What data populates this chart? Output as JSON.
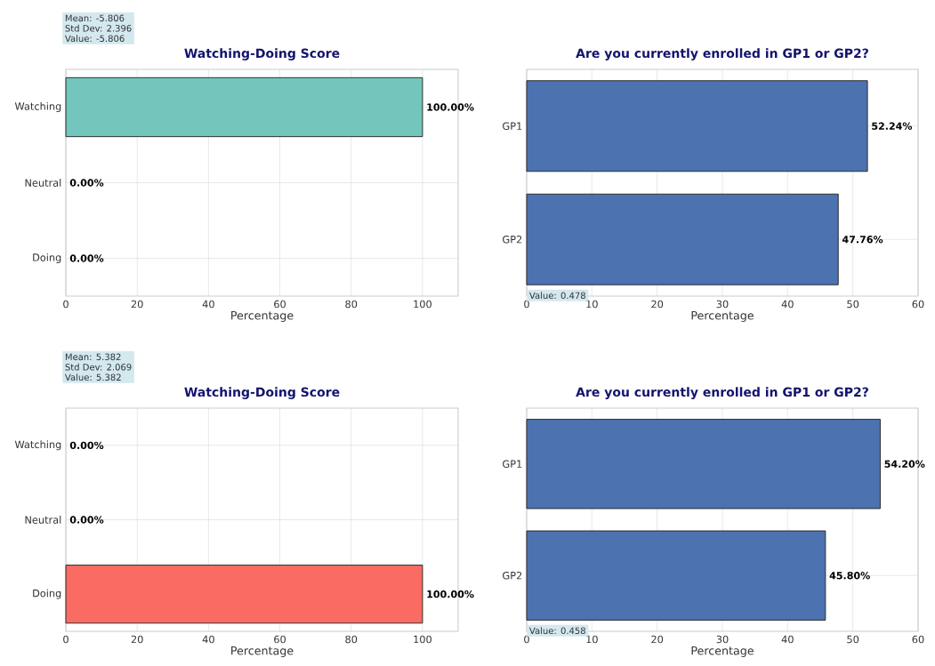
{
  "chart_data": [
    {
      "type": "bar",
      "orientation": "horizontal",
      "title": "Watching-Doing Score",
      "xlabel": "Percentage",
      "categories": [
        "Watching",
        "Neutral",
        "Doing"
      ],
      "values": [
        100,
        0,
        0
      ],
      "value_labels": [
        "100.00%",
        "0.00%",
        "0.00%"
      ],
      "color": "#72c6bc",
      "xlim": [
        0,
        110
      ],
      "xticks": [
        0,
        20,
        40,
        60,
        80,
        100
      ],
      "grid": true,
      "annotations": [
        "Mean: -5.806",
        "Std Dev: 2.396",
        "Value: -5.806"
      ]
    },
    {
      "type": "bar",
      "orientation": "horizontal",
      "title": "Are you currently enrolled in GP1 or GP2?",
      "xlabel": "Percentage",
      "categories": [
        "GP1",
        "GP2"
      ],
      "values": [
        52.24,
        47.76
      ],
      "value_labels": [
        "52.24%",
        "47.76%"
      ],
      "color": "#4c72b0",
      "xlim": [
        0,
        60
      ],
      "xticks": [
        0,
        10,
        20,
        30,
        40,
        50,
        60
      ],
      "grid": true,
      "annotations": [
        "Value: 0.478"
      ]
    },
    {
      "type": "bar",
      "orientation": "horizontal",
      "title": "Watching-Doing Score",
      "xlabel": "Percentage",
      "categories": [
        "Watching",
        "Neutral",
        "Doing"
      ],
      "values": [
        0,
        0,
        100
      ],
      "value_labels": [
        "0.00%",
        "0.00%",
        "100.00%"
      ],
      "color": "#fa6b63",
      "xlim": [
        0,
        110
      ],
      "xticks": [
        0,
        20,
        40,
        60,
        80,
        100
      ],
      "grid": true,
      "annotations": [
        "Mean: 5.382",
        "Std Dev: 2.069",
        "Value: 5.382"
      ]
    },
    {
      "type": "bar",
      "orientation": "horizontal",
      "title": "Are you currently enrolled in GP1 or GP2?",
      "xlabel": "Percentage",
      "categories": [
        "GP1",
        "GP2"
      ],
      "values": [
        54.2,
        45.8
      ],
      "value_labels": [
        "54.20%",
        "45.80%"
      ],
      "color": "#4c72b0",
      "xlim": [
        0,
        60
      ],
      "xticks": [
        0,
        10,
        20,
        30,
        40,
        50,
        60
      ],
      "grid": true,
      "annotations": [
        "Value: 0.458"
      ]
    }
  ]
}
